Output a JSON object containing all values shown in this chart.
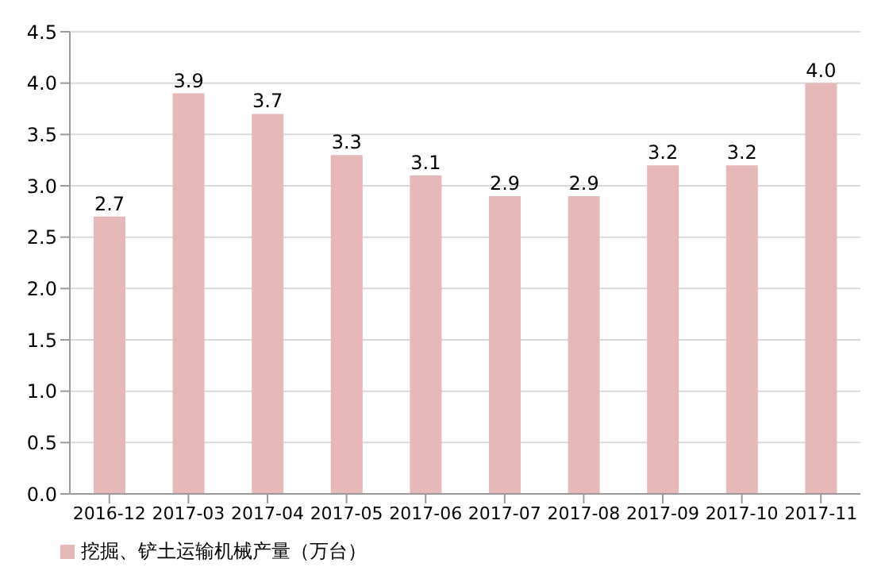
{
  "chart_data": {
    "type": "bar",
    "categories": [
      "2016-12",
      "2017-03",
      "2017-04",
      "2017-05",
      "2017-06",
      "2017-07",
      "2017-08",
      "2017-09",
      "2017-10",
      "2017-11"
    ],
    "series": [
      {
        "name": "挖掘、铲土运输机械产量（万台）",
        "color": "#e6b8b7",
        "values": [
          2.7,
          3.9,
          3.7,
          3.3,
          3.1,
          2.9,
          2.9,
          3.2,
          3.2,
          4.0
        ],
        "value_labels": [
          "2.7",
          "3.9",
          "3.7",
          "3.3",
          "3.1",
          "2.9",
          "2.9",
          "3.2",
          "3.2",
          "4.0"
        ]
      }
    ],
    "ylim": [
      0,
      4.5
    ],
    "yticks": [
      {
        "value": 0,
        "label": "0.0"
      },
      {
        "value": 0.5,
        "label": "0.5"
      },
      {
        "value": 1,
        "label": "1.0"
      },
      {
        "value": 1.5,
        "label": "1.5"
      },
      {
        "value": 2,
        "label": "2.0"
      },
      {
        "value": 2.5,
        "label": "2.5"
      },
      {
        "value": 3,
        "label": "3.0"
      },
      {
        "value": 3.5,
        "label": "3.5"
      },
      {
        "value": 4,
        "label": "4.0"
      },
      {
        "value": 4.5,
        "label": "4.5"
      }
    ],
    "grid": "y",
    "legend": "bottom left"
  }
}
